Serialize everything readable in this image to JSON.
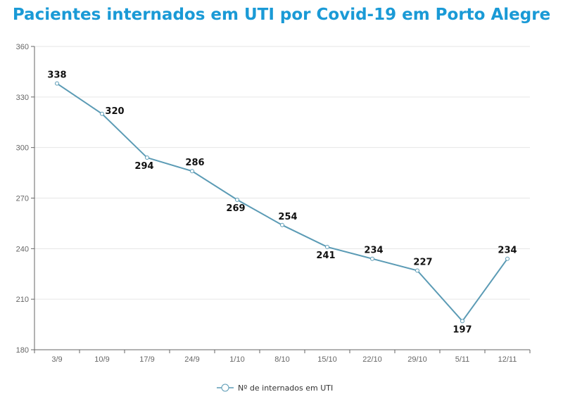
{
  "chart_data": {
    "type": "line",
    "title": "Pacientes internados em UTI por Covid-19 em Porto Alegre",
    "categories": [
      "3/9",
      "10/9",
      "17/9",
      "24/9",
      "1/10",
      "8/10",
      "15/10",
      "22/10",
      "29/10",
      "5/11",
      "12/11"
    ],
    "series": [
      {
        "name": "Nº de internados em UTI",
        "values": [
          338,
          320,
          294,
          286,
          269,
          254,
          241,
          234,
          227,
          197,
          234
        ],
        "color": "#5b9bb5"
      }
    ],
    "ylim": [
      180,
      360
    ],
    "yticks": [
      180,
      210,
      240,
      270,
      300,
      330,
      360
    ],
    "grid": "horizontal",
    "legend": "bottom-center",
    "xlabel": "",
    "ylabel": ""
  }
}
